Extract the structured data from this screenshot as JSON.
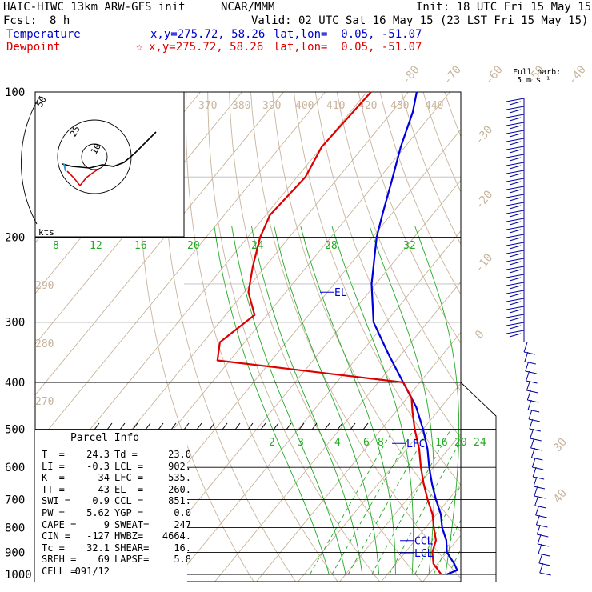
{
  "header": {
    "model": "HAIC-HIWC 13km ARW-GFS init",
    "org": "NCAR/MMM",
    "init": "Init: 18 UTC Fri 15 May 15",
    "fcst_label": "Fcst:",
    "fcst_value": "8 h",
    "valid": "Valid: 02 UTC Sat 16 May 15 (23 LST Fri 15 May 15)",
    "temperature_label": "Temperature",
    "dewpoint_label": "Dewpoint",
    "xy_temp": "x,y=275.72, 58.26",
    "xy_dew": "x,y=275.72, 58.26",
    "latlon_temp": "lat,lon=  0.05, -51.07",
    "latlon_dew": "lat,lon=  0.05, -51.07",
    "star": "☆"
  },
  "colors": {
    "temperature": "#0000dd",
    "dewpoint": "#dd0000",
    "isotherm": "#c8b49b",
    "mixing": "#22aa22",
    "wind": "#000099"
  },
  "legend": {
    "barb_title": "Full barb:",
    "barb_value": "5 m s⁻¹"
  },
  "hodograph": {
    "units": "kts",
    "rings": [
      "50",
      "25",
      "10"
    ]
  },
  "chart_data": {
    "type": "line",
    "pressure_labels": [
      "100",
      "200",
      "300",
      "400",
      "500",
      "600",
      "700",
      "800",
      "900",
      "1000"
    ],
    "isotherm_labels": [
      "-80",
      "-70",
      "-60",
      "-50",
      "-40",
      "-30",
      "-20",
      "-10",
      "0",
      "30",
      "40"
    ],
    "theta_labels": [
      "370",
      "380",
      "390",
      "400",
      "410",
      "420",
      "430",
      "440"
    ],
    "theta_labels_left": [
      "290",
      "280",
      "270"
    ],
    "mixing_labels_upper": [
      "8",
      "12",
      "16",
      "20",
      "24",
      "28",
      "32"
    ],
    "mixing_labels_lower": [
      "2",
      "3",
      "4",
      "6",
      "8",
      "12",
      "16",
      "20",
      "24"
    ],
    "temperature_profile": [
      [
        100,
        -78
      ],
      [
        110,
        -75
      ],
      [
        130,
        -71
      ],
      [
        150,
        -67
      ],
      [
        180,
        -62
      ],
      [
        200,
        -59
      ],
      [
        250,
        -51
      ],
      [
        300,
        -43
      ],
      [
        350,
        -33
      ],
      [
        400,
        -24
      ],
      [
        450,
        -16
      ],
      [
        500,
        -10
      ],
      [
        550,
        -5
      ],
      [
        600,
        -1
      ],
      [
        650,
        3
      ],
      [
        700,
        7
      ],
      [
        750,
        11
      ],
      [
        800,
        14
      ],
      [
        850,
        17.5
      ],
      [
        900,
        20
      ],
      [
        950,
        24
      ],
      [
        980,
        26
      ],
      [
        1000,
        24.3
      ]
    ],
    "dewpoint_profile": [
      [
        100,
        -89
      ],
      [
        130,
        -90
      ],
      [
        150,
        -88
      ],
      [
        180,
        -89
      ],
      [
        200,
        -87
      ],
      [
        230,
        -83
      ],
      [
        260,
        -79
      ],
      [
        290,
        -73
      ],
      [
        330,
        -76
      ],
      [
        360,
        -73
      ],
      [
        400,
        -24
      ],
      [
        430,
        -19
      ],
      [
        460,
        -16
      ],
      [
        500,
        -12
      ],
      [
        550,
        -7
      ],
      [
        600,
        -3
      ],
      [
        650,
        1
      ],
      [
        700,
        5
      ],
      [
        750,
        9
      ],
      [
        800,
        12
      ],
      [
        850,
        15
      ],
      [
        900,
        16.5
      ],
      [
        950,
        19
      ],
      [
        1000,
        23
      ]
    ],
    "levels": [
      {
        "label": "EL",
        "pressure": 260
      },
      {
        "label": "LFC",
        "pressure": 535
      },
      {
        "label": "CCL",
        "pressure": 851
      },
      {
        "label": "LCL",
        "pressure": 902
      }
    ]
  },
  "parcel": {
    "title": "Parcel Info",
    "rows": [
      {
        "k1": "T  =",
        "v1": "24.3",
        "k2": "Td =",
        "v2": "23.0"
      },
      {
        "k1": "LI =",
        "v1": "-0.3",
        "k2": "LCL =",
        "v2": "902."
      },
      {
        "k1": "K  =",
        "v1": "34",
        "k2": "LFC =",
        "v2": "535."
      },
      {
        "k1": "TT =",
        "v1": "43",
        "k2": "EL  =",
        "v2": "260."
      },
      {
        "k1": "SWI =",
        "v1": "0.9",
        "k2": "CCL =",
        "v2": "851."
      },
      {
        "k1": "PW =",
        "v1": "5.62",
        "k2": "YGP =",
        "v2": "0.0"
      },
      {
        "k1": "CAPE =",
        "v1": "9",
        "k2": "SWEAT=",
        "v2": "247"
      },
      {
        "k1": "CIN =",
        "v1": "-127",
        "k2": "HWBZ=",
        "v2": "4664."
      },
      {
        "k1": "Tc =",
        "v1": "32.1",
        "k2": "SHEAR=",
        "v2": "16."
      },
      {
        "k1": "SREH =",
        "v1": "69",
        "k2": "LAPSE=",
        "v2": "5.8"
      },
      {
        "k1": "CELL =",
        "v1": "091/12",
        "k2": "",
        "v2": ""
      }
    ]
  }
}
